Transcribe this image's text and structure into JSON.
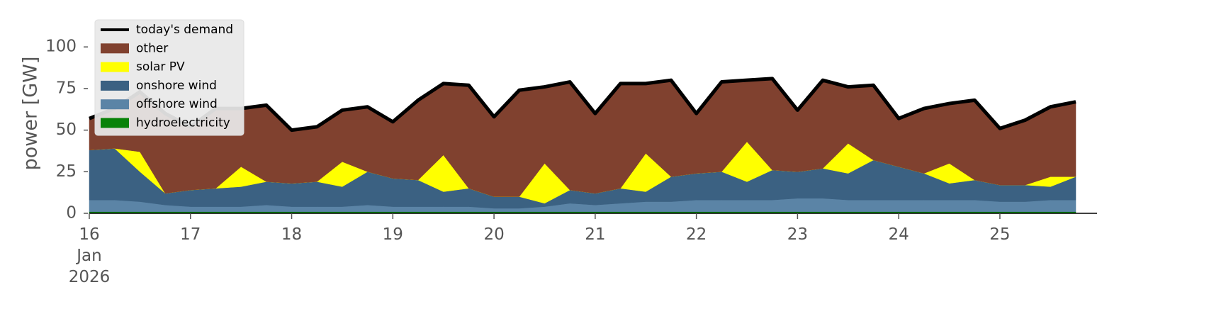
{
  "chart_data": {
    "type": "stacked-area",
    "y_label": "power [GW]",
    "ylim": [
      0,
      115
    ],
    "yticks": [
      0,
      25,
      50,
      75,
      100
    ],
    "xlim": [
      16,
      25.96
    ],
    "xticks": [
      {
        "value": 16,
        "label": "16\nJan\n2026"
      },
      17,
      18,
      19,
      20,
      21,
      22,
      23,
      24,
      25
    ],
    "x": [
      16,
      16.25,
      16.5,
      16.75,
      17,
      17.25,
      17.5,
      17.75,
      18,
      18.25,
      18.5,
      18.75,
      19,
      19.25,
      19.5,
      19.75,
      20,
      20.25,
      20.5,
      20.75,
      21,
      21.25,
      21.5,
      21.75,
      22,
      22.25,
      22.5,
      22.75,
      23,
      23.25,
      23.5,
      23.75,
      24,
      24.25,
      24.5,
      24.75,
      25,
      25.25,
      25.5,
      25.75
    ],
    "legend": "upper left",
    "series": [
      {
        "name": "today's demand",
        "type": "line",
        "color": "#000000",
        "values": [
          57,
          63,
          73,
          60,
          52,
          63,
          63,
          65,
          50,
          52,
          62,
          64,
          55,
          68,
          78,
          77,
          58,
          74,
          76,
          79,
          60,
          78,
          78,
          80,
          60,
          79,
          80,
          81,
          62,
          80,
          76,
          77,
          57,
          63,
          66,
          68,
          51,
          56,
          64,
          67
        ]
      },
      {
        "name": "other",
        "type": "area",
        "color": "#80412f",
        "values": [
          19,
          24,
          36,
          48,
          38,
          48,
          35,
          46,
          32,
          33,
          31,
          39,
          34,
          48,
          43,
          62,
          48,
          64,
          46,
          65,
          48,
          63,
          42,
          58,
          36,
          54,
          37,
          55,
          37,
          53,
          34,
          45,
          29,
          39,
          36,
          48,
          34,
          39,
          42,
          45
        ]
      },
      {
        "name": "solar PV",
        "type": "area",
        "color": "#ffff00",
        "values": [
          0,
          0,
          12,
          0,
          0,
          0,
          12,
          0,
          0,
          0,
          15,
          0,
          0,
          0,
          22,
          0,
          0,
          0,
          24,
          0,
          0,
          0,
          23,
          0,
          0,
          0,
          24,
          0,
          0,
          0,
          18,
          0,
          0,
          0,
          12,
          0,
          0,
          0,
          6,
          0
        ]
      },
      {
        "name": "onshore wind",
        "type": "area",
        "color": "#3b6182",
        "values": [
          30,
          31,
          18,
          7,
          10,
          11,
          12,
          14,
          14,
          15,
          12,
          20,
          17,
          16,
          9,
          11,
          7,
          7,
          2,
          8,
          7,
          9,
          6,
          15,
          16,
          17,
          11,
          18,
          16,
          18,
          16,
          24,
          20,
          16,
          10,
          12,
          10,
          10,
          8,
          14
        ]
      },
      {
        "name": "offshore wind",
        "type": "area",
        "color": "#5b84a6",
        "values": [
          7,
          7,
          6,
          4,
          3,
          3,
          3,
          4,
          3,
          3,
          3,
          4,
          3,
          3,
          3,
          3,
          2,
          2,
          3,
          5,
          4,
          5,
          6,
          6,
          7,
          7,
          7,
          7,
          8,
          8,
          7,
          7,
          7,
          7,
          7,
          7,
          6,
          6,
          7,
          7
        ]
      },
      {
        "name": "hydroelectricity",
        "type": "area",
        "color": "#088208",
        "values": [
          1,
          1,
          1,
          1,
          1,
          1,
          1,
          1,
          1,
          1,
          1,
          1,
          1,
          1,
          1,
          1,
          1,
          1,
          1,
          1,
          1,
          1,
          1,
          1,
          1,
          1,
          1,
          1,
          1,
          1,
          1,
          1,
          1,
          1,
          1,
          1,
          1,
          1,
          1,
          1
        ]
      }
    ]
  }
}
